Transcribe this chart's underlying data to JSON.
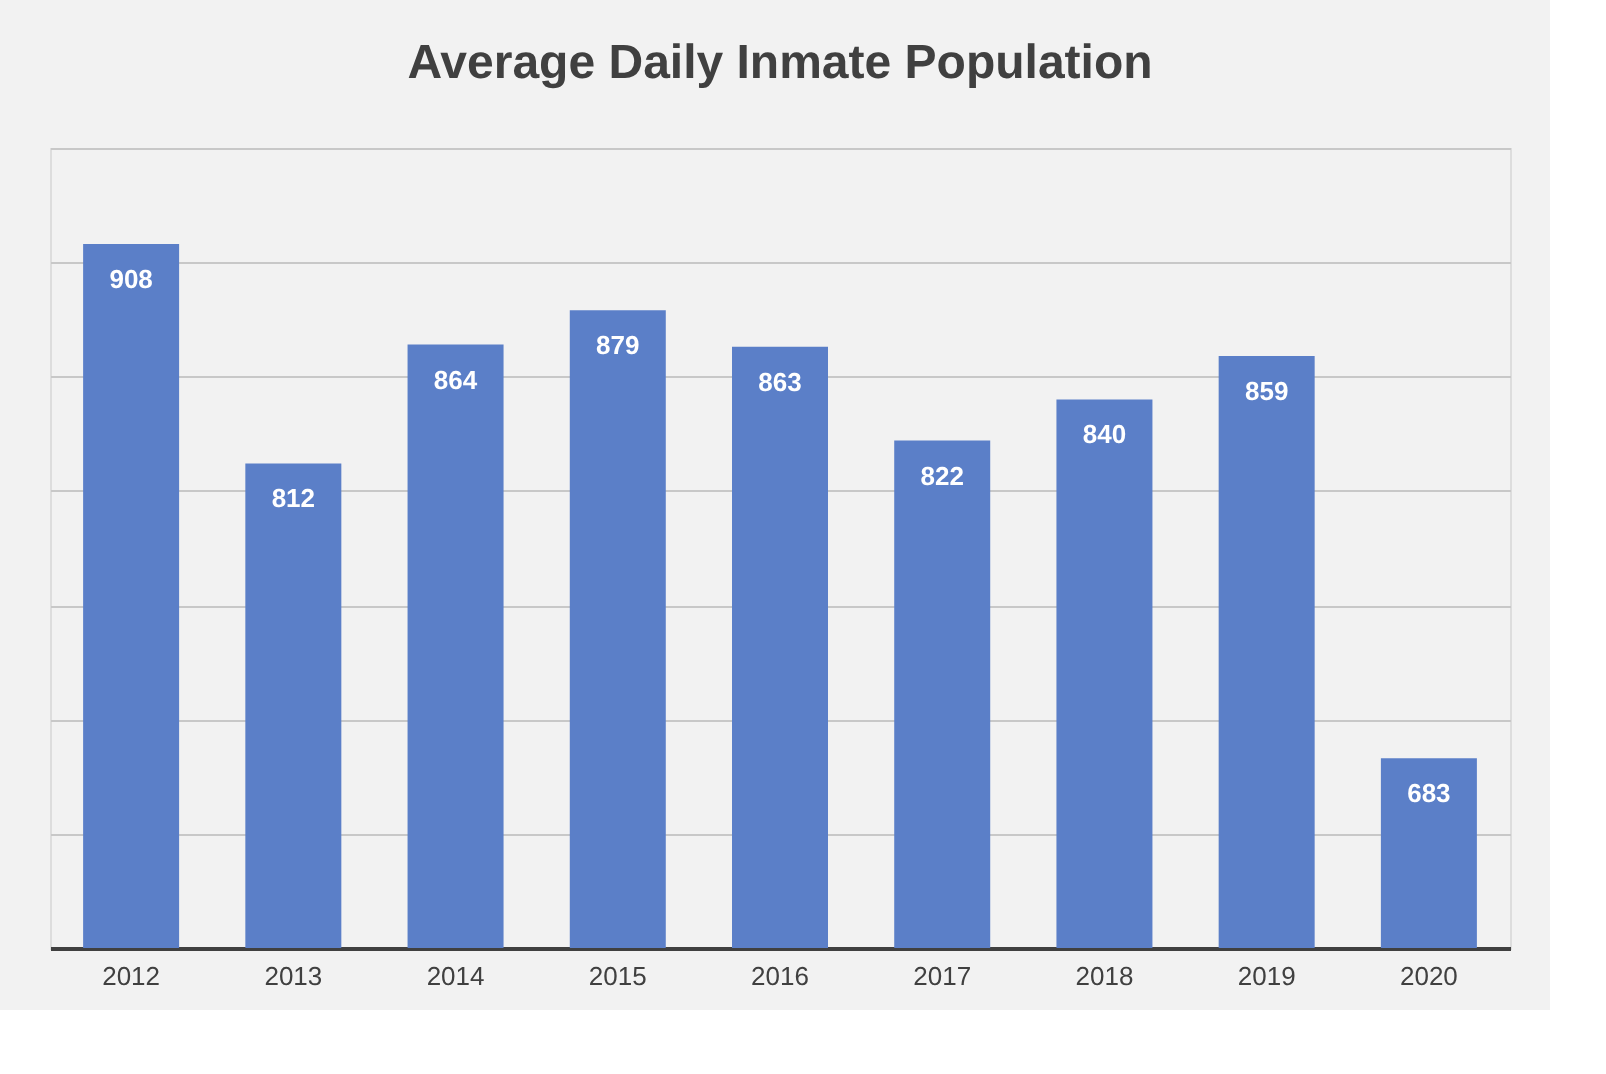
{
  "chart_data": {
    "type": "bar",
    "title": "Average Daily Inmate Population",
    "categories": [
      "2012",
      "2013",
      "2014",
      "2015",
      "2016",
      "2017",
      "2018",
      "2019",
      "2020"
    ],
    "values": [
      908,
      812,
      864,
      879,
      863,
      822,
      840,
      859,
      683
    ],
    "color": "#5b7fc8",
    "ylim": [
      600,
      950
    ],
    "yticks": [
      {
        "value": 600,
        "label": null
      },
      {
        "value": 650,
        "label": null
      },
      {
        "value": 700,
        "label": null
      },
      {
        "value": 750,
        "label": null
      },
      {
        "value": 800,
        "label": null
      },
      {
        "value": 850,
        "label": null
      },
      {
        "value": 900,
        "label": null
      },
      {
        "value": 950,
        "label": null
      }
    ],
    "tick_labels": "x",
    "grid": "y",
    "data_labels": true
  }
}
